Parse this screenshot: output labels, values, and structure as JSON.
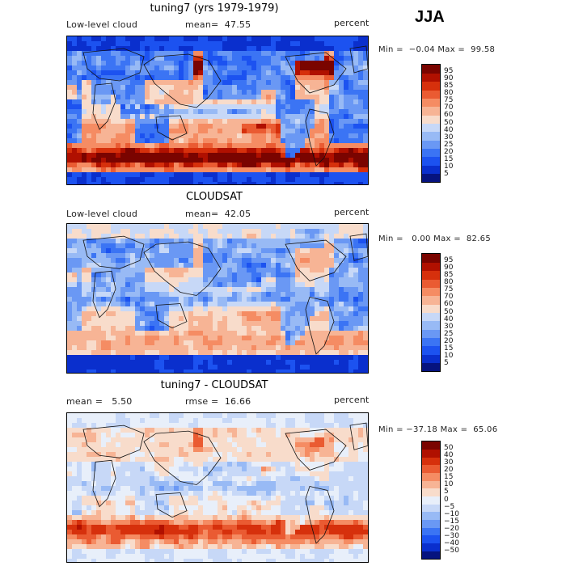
{
  "season": "JJA",
  "colors": {
    "levels_11": [
      "#06137f",
      "#0a2fcd",
      "#1c52f0",
      "#3b74f4",
      "#6a98f4",
      "#98baf5",
      "#c7d8f7",
      "#f8dccb",
      "#f7b495",
      "#f58c63",
      "#ea5b32",
      "#d6300c",
      "#b01000",
      "#7a0400"
    ],
    "diff_levels": [
      "#06137f",
      "#0a2fcd",
      "#1c52f0",
      "#3b74f4",
      "#6a98f4",
      "#98baf5",
      "#c7d8f7",
      "#e8effa",
      "#f8dccb",
      "#f7b495",
      "#f58c63",
      "#ea5b32",
      "#d6300c",
      "#b01000",
      "#7a0400"
    ]
  },
  "panels": [
    {
      "id": "model",
      "title": "tuning7 (yrs 1979-1979)",
      "left_label": "Low-level cloud",
      "mid_label": "mean=  47.55",
      "right_label": "percent",
      "minmax": "Min =  −0.04 Max =  99.58",
      "colorbar_levels": [
        "5",
        "10",
        "15",
        "20",
        "25",
        "30",
        "40",
        "50",
        "60",
        "70",
        "75",
        "80",
        "85",
        "90",
        "95"
      ],
      "field": "model"
    },
    {
      "id": "obs",
      "title": "CLOUDSAT",
      "left_label": "Low-level cloud",
      "mid_label": "mean=  42.05",
      "right_label": "percent",
      "minmax": "Min =   0.00 Max =  82.65",
      "colorbar_levels": [
        "5",
        "10",
        "15",
        "20",
        "25",
        "30",
        "40",
        "50",
        "60",
        "70",
        "75",
        "80",
        "85",
        "90",
        "95"
      ],
      "field": "obs"
    },
    {
      "id": "diff",
      "title": "tuning7 - CLOUDSAT",
      "left_label": "mean =   5.50",
      "mid_label": "rmse =  16.66",
      "right_label": "percent",
      "minmax": "Min = −37.18 Max =  65.06",
      "colorbar_levels": [
        "−50",
        "−40",
        "−30",
        "−20",
        "−15",
        "−10",
        "−5",
        "0",
        "5",
        "10",
        "15",
        "20",
        "30",
        "40",
        "50"
      ],
      "field": "diff"
    }
  ]
}
